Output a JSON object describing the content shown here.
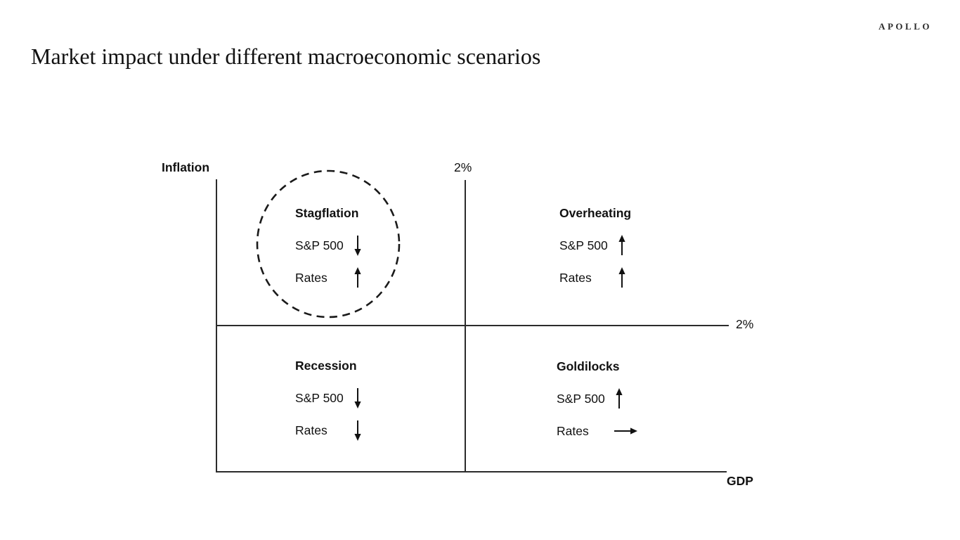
{
  "brand": {
    "logo_text": "APOLLO"
  },
  "slide": {
    "title": "Market impact under different macroeconomic scenarios"
  },
  "diagram": {
    "y_axis_label": "Inflation",
    "x_axis_label": "GDP",
    "y_threshold_label": "2%",
    "x_threshold_label": "2%",
    "quadrants": [
      {
        "name": "Stagflation",
        "position": "top-left",
        "highlighted": true,
        "items": [
          {
            "label": "S&P 500",
            "direction": "down"
          },
          {
            "label": "Rates",
            "direction": "up"
          }
        ]
      },
      {
        "name": "Overheating",
        "position": "top-right",
        "highlighted": false,
        "items": [
          {
            "label": "S&P 500",
            "direction": "up"
          },
          {
            "label": "Rates",
            "direction": "up"
          }
        ]
      },
      {
        "name": "Recession",
        "position": "bottom-left",
        "highlighted": false,
        "items": [
          {
            "label": "S&P 500",
            "direction": "down"
          },
          {
            "label": "Rates",
            "direction": "down"
          }
        ]
      },
      {
        "name": "Goldilocks",
        "position": "bottom-right",
        "highlighted": false,
        "items": [
          {
            "label": "S&P 500",
            "direction": "up"
          },
          {
            "label": "Rates",
            "direction": "right"
          }
        ]
      }
    ],
    "colors": {
      "line": "#2b2b2b",
      "text": "#111111",
      "background": "#ffffff"
    }
  }
}
